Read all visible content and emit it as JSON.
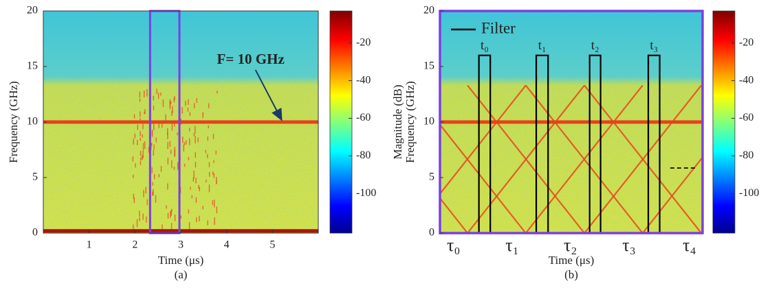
{
  "chart_data": [
    {
      "type": "spectrogram",
      "caption": "(a)",
      "xlabel": "Time (μs)",
      "ylabel": "Frequency (GHz)",
      "colorbar_label": "Magnitude (dB)",
      "xlim": [
        0,
        6
      ],
      "xticks": [
        1,
        2,
        3,
        4,
        5
      ],
      "ylim": [
        0,
        20
      ],
      "yticks": [
        0,
        5,
        10,
        15,
        20
      ],
      "clim": [
        -121,
        -3
      ],
      "cticks": [
        -20,
        -40,
        -60,
        -80,
        -100
      ],
      "signal_band_top": 13.5,
      "tones": [
        {
          "frequency": 10,
          "color": "#e8401a"
        },
        {
          "frequency": 0.2,
          "color": "#b0100c"
        }
      ],
      "highlight": {
        "t_start": 2.33,
        "t_end": 2.97,
        "color": "#7b3fe4"
      },
      "annotation": {
        "text": "F= 10 GHz",
        "x": 5.2,
        "y": 10
      }
    },
    {
      "type": "spectrogram",
      "caption": "(b)",
      "xlabel": "Time (μs)",
      "ylabel": "Frequency (GHz)",
      "colorbar_label": "Magnitude (dB)",
      "xlim": [
        0,
        6
      ],
      "ylim": [
        0,
        20
      ],
      "yticks": [
        0,
        5,
        10,
        15,
        20
      ],
      "clim": [
        -121,
        -3
      ],
      "cticks": [
        -20,
        -40,
        -60,
        -80,
        -100
      ],
      "signal_band_top": 13.5,
      "tones": [
        {
          "frequency": 10,
          "color": "#e8401a"
        }
      ],
      "frame_color": "#7b3fe4",
      "x_markers": [
        {
          "value": 0.31,
          "label": "τ₀"
        },
        {
          "value": 1.65,
          "label": "τ₁"
        },
        {
          "value": 2.98,
          "label": "τ₂"
        },
        {
          "value": 4.32,
          "label": "τ₃"
        },
        {
          "value": 5.7,
          "label": "τ₄"
        }
      ],
      "x_marker_color": "#d42020",
      "chirps": [
        [
          [
            -2.04,
            13.3
          ],
          [
            0.63,
            0
          ]
        ],
        [
          [
            0.63,
            0
          ],
          [
            3.3,
            13.3
          ]
        ],
        [
          [
            -0.71,
            13.3
          ],
          [
            1.96,
            0
          ]
        ],
        [
          [
            1.96,
            0
          ],
          [
            4.63,
            13.3
          ]
        ],
        [
          [
            0.63,
            13.3
          ],
          [
            3.3,
            0
          ]
        ],
        [
          [
            3.3,
            0
          ],
          [
            5.97,
            13.3
          ]
        ],
        [
          [
            1.96,
            13.3
          ],
          [
            4.63,
            0
          ]
        ],
        [
          [
            4.63,
            0
          ],
          [
            7.3,
            13.3
          ]
        ],
        [
          [
            3.3,
            13.3
          ],
          [
            5.97,
            0
          ]
        ],
        [
          [
            -0.71,
            0
          ],
          [
            1.96,
            13.3
          ]
        ]
      ],
      "legend_label": "Filter",
      "filter_height": 16,
      "filters": [
        {
          "label": "t₀",
          "t_start": 0.89,
          "t_end": 1.15
        },
        {
          "label": "t₁",
          "t_start": 2.2,
          "t_end": 2.47
        },
        {
          "label": "t₂",
          "t_start": 3.42,
          "t_end": 3.67
        },
        {
          "label": "t₃",
          "t_start": 4.76,
          "t_end": 5.02
        }
      ],
      "dashed_line": {
        "t_start": 5.26,
        "t_end": 5.86,
        "frequency": 5.86
      }
    }
  ]
}
